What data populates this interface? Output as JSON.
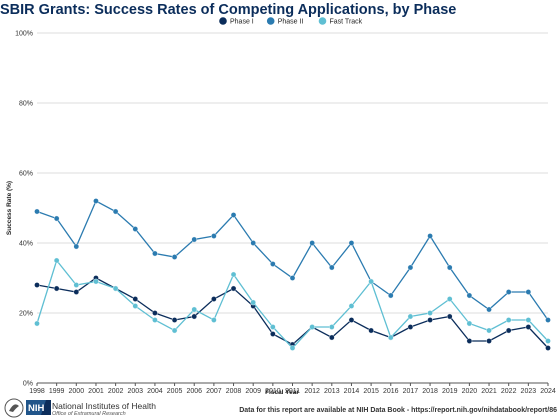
{
  "page": {
    "title": "SBIR Grants: Success Rates of Competing Applications, by Phase",
    "footer_org": "National Institutes of Health",
    "footer_office": "Office of Extramural Research",
    "footer_logo_text": "NIH",
    "source_note": "Data for this report are available at NIH Data Book - https://report.nih.gov/nihdatabook/report/86"
  },
  "chart_data": {
    "type": "line",
    "title": "SBIR Grants: Success Rates of Competing Applications, by Phase",
    "xlabel": "Fiscal Year",
    "ylabel": "Success Rate (%)",
    "ylim": [
      0,
      100
    ],
    "yticks": [
      0,
      20,
      40,
      60,
      80,
      100
    ],
    "ytick_suffix": "%",
    "grid": true,
    "legend_position": "top-center",
    "categories": [
      "1998",
      "1999",
      "2000",
      "2001",
      "2002",
      "2003",
      "2004",
      "2005",
      "2006",
      "2007",
      "2008",
      "2009",
      "2010",
      "2011",
      "2012",
      "2013",
      "2014",
      "2015",
      "2016",
      "2017",
      "2018",
      "2019",
      "2020",
      "2021",
      "2022",
      "2023",
      "2024"
    ],
    "series": [
      {
        "name": "Phase I",
        "color": "#0b2d5b",
        "values": [
          28,
          27,
          26,
          30,
          27,
          24,
          20,
          18,
          19,
          24,
          27,
          22,
          14,
          11,
          16,
          13,
          18,
          15,
          13,
          16,
          18,
          19,
          12,
          12,
          15,
          16,
          10
        ]
      },
      {
        "name": "Phase II",
        "color": "#2b7bb0",
        "values": [
          49,
          47,
          39,
          52,
          49,
          44,
          37,
          36,
          41,
          42,
          48,
          40,
          34,
          30,
          40,
          33,
          40,
          29,
          25,
          33,
          42,
          33,
          25,
          21,
          26,
          26,
          18
        ]
      },
      {
        "name": "Fast Track",
        "color": "#5fbfd3",
        "values": [
          17,
          35,
          28,
          29,
          27,
          22,
          18,
          15,
          21,
          18,
          31,
          23,
          16,
          10,
          16,
          16,
          22,
          29,
          13,
          19,
          20,
          24,
          17,
          15,
          18,
          18,
          12
        ]
      }
    ]
  }
}
